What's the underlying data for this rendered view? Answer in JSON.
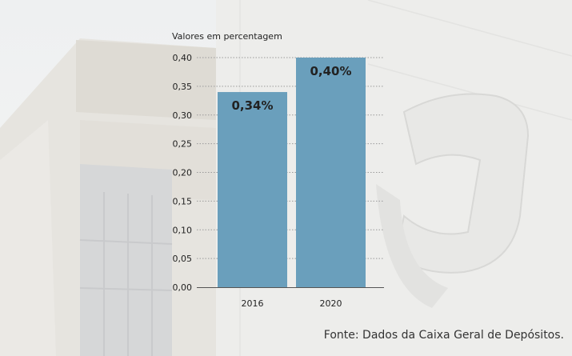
{
  "chart_data": {
    "type": "bar",
    "ylabel": "Valores em percentagem",
    "categories": [
      "2016",
      "2020"
    ],
    "values": [
      0.34,
      0.4
    ],
    "data_labels": [
      "0,34%",
      "0,40%"
    ],
    "yticks": [
      "0,00",
      "0,05",
      "0,10",
      "0,15",
      "0,20",
      "0,25",
      "0,30",
      "0,35",
      "0,40"
    ],
    "ylim": [
      0,
      0.4
    ],
    "grid": true,
    "bar_color": "#6a9fbc"
  },
  "source": "Fonte: Dados da Caixa Geral de Depósitos."
}
